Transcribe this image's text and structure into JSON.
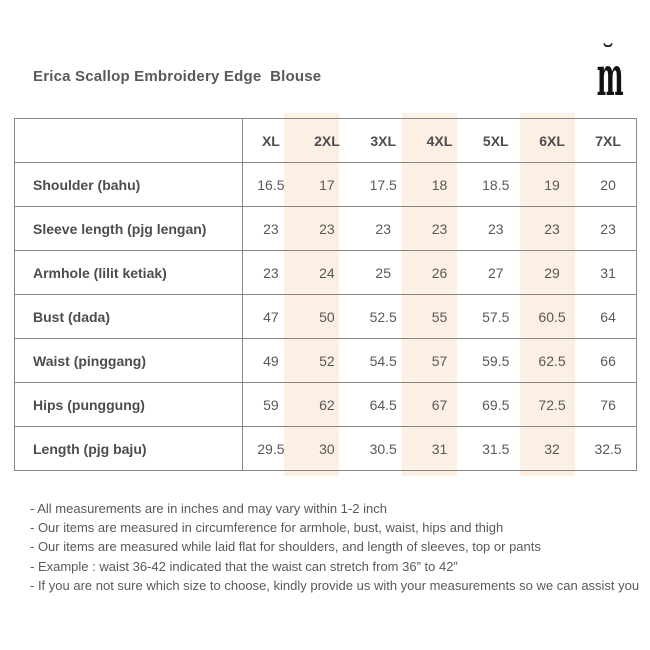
{
  "header": {
    "title": "Erica Scallop Embroidery Edge  Blouse",
    "logo": {
      "letter": "m",
      "accent": "˘"
    }
  },
  "size_chart": {
    "columns": [
      "XL",
      "2XL",
      "3XL",
      "4XL",
      "5XL",
      "6XL",
      "7XL"
    ],
    "highlighted_columns": [
      "2XL",
      "4XL",
      "6XL"
    ],
    "rows": [
      {
        "label": "Shoulder (bahu)",
        "values": [
          "16.5",
          "17",
          "17.5",
          "18",
          "18.5",
          "19",
          "20"
        ]
      },
      {
        "label": "Sleeve length (pjg lengan)",
        "values": [
          "23",
          "23",
          "23",
          "23",
          "23",
          "23",
          "23"
        ]
      },
      {
        "label": "Armhole (lilit ketiak)",
        "values": [
          "23",
          "24",
          "25",
          "26",
          "27",
          "29",
          "31"
        ]
      },
      {
        "label": "Bust (dada)",
        "values": [
          "47",
          "50",
          "52.5",
          "55",
          "57.5",
          "60.5",
          "64"
        ]
      },
      {
        "label": "Waist (pinggang)",
        "values": [
          "49",
          "52",
          "54.5",
          "57",
          "59.5",
          "62.5",
          "66"
        ]
      },
      {
        "label": "Hips (punggung)",
        "values": [
          "59",
          "62",
          "64.5",
          "67",
          "69.5",
          "72.5",
          "76"
        ]
      },
      {
        "label": "Length (pjg baju)",
        "values": [
          "29.5",
          "30",
          "30.5",
          "31",
          "31.5",
          "32",
          "32.5"
        ]
      }
    ]
  },
  "notes": [
    "- All measurements are in inches and may vary within 1-2 inch",
    "- Our items are measured in circumference for armhole, bust, waist, hips and thigh",
    "- Our items are measured while laid flat for shoulders, and length of sleeves, top or pants",
    "- Example : waist 36-42 indicated that the waist can stretch from 36” to 42”",
    "- If you are not sure which size to choose, kindly provide us with your measurements so we can assist you"
  ],
  "colors": {
    "column_highlight": "#fcefe3",
    "table_border": "#878787",
    "text": "#595959",
    "logo": "#111111"
  }
}
